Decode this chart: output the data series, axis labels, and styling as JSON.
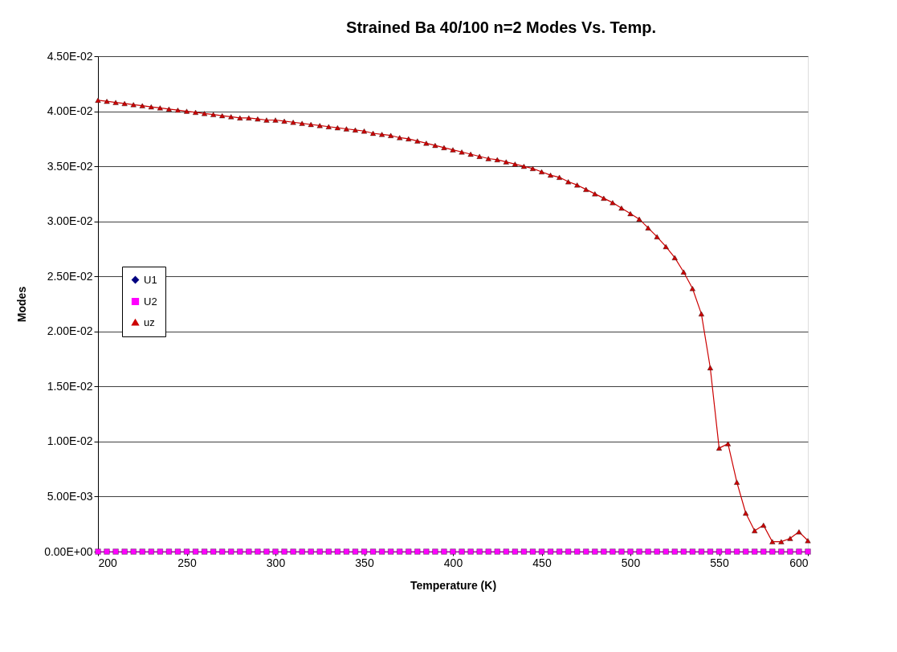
{
  "chart_data": {
    "type": "line",
    "title": "Strained Ba 40/100 n=2  Modes Vs. Temp.",
    "xlabel": "Temperature (K)",
    "ylabel": "Modes",
    "x": [
      200,
      205,
      210,
      215,
      220,
      225,
      230,
      235,
      240,
      245,
      250,
      255,
      260,
      265,
      270,
      275,
      280,
      285,
      290,
      295,
      300,
      305,
      310,
      315,
      320,
      325,
      330,
      335,
      340,
      345,
      350,
      355,
      360,
      365,
      370,
      375,
      380,
      385,
      390,
      395,
      400,
      405,
      410,
      415,
      420,
      425,
      430,
      435,
      440,
      445,
      450,
      455,
      460,
      465,
      470,
      475,
      480,
      485,
      490,
      495,
      500,
      505,
      510,
      515,
      520,
      525,
      530,
      535,
      540,
      545,
      550,
      555,
      560,
      565,
      570,
      575,
      580,
      585,
      590,
      595,
      600
    ],
    "series": [
      {
        "name": "U1",
        "color": "#000080",
        "marker": "diamond",
        "values": [
          null,
          null,
          null,
          null,
          null,
          null,
          null,
          null,
          null,
          null,
          null,
          null,
          null,
          null,
          null,
          null,
          null,
          null,
          null,
          null,
          null,
          null,
          null,
          null,
          null,
          null,
          null,
          null,
          null,
          null,
          null,
          null,
          null,
          null,
          null,
          null,
          null,
          null,
          null,
          null,
          null,
          null,
          null,
          null,
          null,
          null,
          null,
          null,
          null,
          null,
          null,
          null,
          null,
          null,
          null,
          null,
          null,
          null,
          null,
          null,
          null,
          null,
          null,
          null,
          null,
          null,
          null,
          null,
          null,
          null,
          null,
          null,
          null,
          null,
          null,
          null,
          null,
          null,
          null,
          null,
          null
        ]
      },
      {
        "name": "U2",
        "color": "#ff00ff",
        "marker": "square",
        "values": [
          0,
          0,
          0,
          0,
          0,
          0,
          0,
          0,
          0,
          0,
          0,
          0,
          0,
          0,
          0,
          0,
          0,
          0,
          0,
          0,
          0,
          0,
          0,
          0,
          0,
          0,
          0,
          0,
          0,
          0,
          0,
          0,
          0,
          0,
          0,
          0,
          0,
          0,
          0,
          0,
          0,
          0,
          0,
          0,
          0,
          0,
          0,
          0,
          0,
          0,
          0,
          0,
          0,
          0,
          0,
          0,
          0,
          0,
          0,
          0,
          0,
          0,
          0,
          0,
          0,
          0,
          0,
          0,
          0,
          0,
          0,
          0,
          0,
          0,
          0,
          0,
          0,
          0,
          0,
          0,
          0
        ]
      },
      {
        "name": "uz",
        "color": "#cc0000",
        "marker": "triangle",
        "values": [
          0.041,
          0.0409,
          0.0408,
          0.0407,
          0.0406,
          0.0405,
          0.0404,
          0.0403,
          0.0402,
          0.0401,
          0.04,
          0.0399,
          0.0398,
          0.0397,
          0.0396,
          0.0395,
          0.0394,
          0.0394,
          0.0393,
          0.0392,
          0.0392,
          0.0391,
          0.039,
          0.0389,
          0.0388,
          0.0387,
          0.0386,
          0.0385,
          0.0384,
          0.0383,
          0.0382,
          0.038,
          0.0379,
          0.0378,
          0.0376,
          0.0375,
          0.0373,
          0.0371,
          0.0369,
          0.0367,
          0.0365,
          0.0363,
          0.0361,
          0.0359,
          0.0357,
          0.0356,
          0.0354,
          0.0352,
          0.035,
          0.0348,
          0.0345,
          0.0342,
          0.034,
          0.0336,
          0.0333,
          0.0329,
          0.0325,
          0.0321,
          0.0317,
          0.0312,
          0.0307,
          0.0302,
          0.0294,
          0.0286,
          0.0277,
          0.0267,
          0.0254,
          0.0239,
          0.0216,
          0.0167,
          0.0094,
          0.0098,
          0.0063,
          0.0035,
          0.0019,
          0.0024,
          0.0009,
          0.0009,
          0.0012,
          0.0018,
          0.001
        ]
      }
    ],
    "xlim": [
      200,
      600
    ],
    "xticks": [
      200,
      250,
      300,
      350,
      400,
      450,
      500,
      550,
      600
    ],
    "ylim": [
      0,
      0.045
    ],
    "yticks": [
      {
        "value": 0,
        "label": "0.00E+00"
      },
      {
        "value": 0.005,
        "label": "5.00E-03"
      },
      {
        "value": 0.01,
        "label": "1.00E-02"
      },
      {
        "value": 0.015,
        "label": "1.50E-02"
      },
      {
        "value": 0.02,
        "label": "2.00E-02"
      },
      {
        "value": 0.025,
        "label": "2.50E-02"
      },
      {
        "value": 0.03,
        "label": "3.00E-02"
      },
      {
        "value": 0.035,
        "label": "3.50E-02"
      },
      {
        "value": 0.04,
        "label": "4.00E-02"
      },
      {
        "value": 0.045,
        "label": "4.50E-02"
      }
    ],
    "grid": "y",
    "legend": "left",
    "line_style": "solid"
  }
}
